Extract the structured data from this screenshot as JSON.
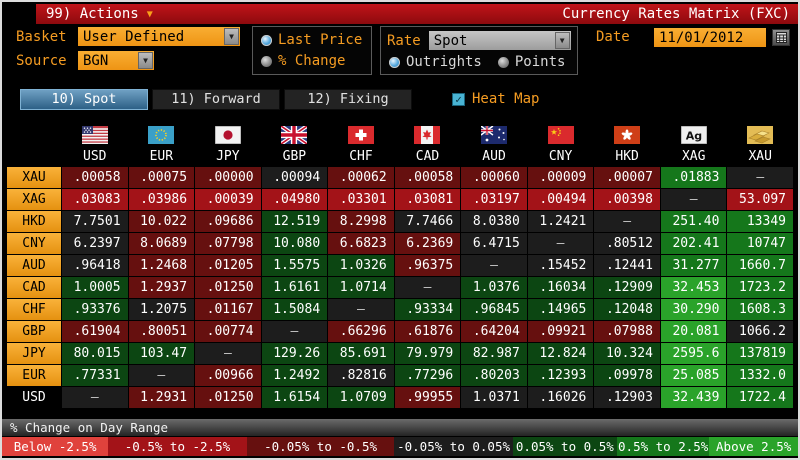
{
  "titlebar": {
    "actions_label": "99) Actions",
    "title": "Currency Rates Matrix (FXC)"
  },
  "toolbar": {
    "basket_label": "Basket",
    "basket_value": "User Defined",
    "source_label": "Source",
    "source_value": "BGN",
    "price_mode": {
      "options": [
        "Last Price",
        "% Change"
      ],
      "selected": "Last Price"
    },
    "rate_label": "Rate",
    "rate_value": "Spot",
    "rate_mode": {
      "options": [
        "Outrights",
        "Points"
      ],
      "selected": "Outrights"
    },
    "date_label": "Date",
    "date_value": "11/01/2012"
  },
  "tabs": [
    {
      "label": "10) Spot",
      "active": true
    },
    {
      "label": "11) Forward",
      "active": false
    },
    {
      "label": "12) Fixing",
      "active": false
    }
  ],
  "heatmap": {
    "label": "Heat Map",
    "checked": true
  },
  "heat_colors": {
    "r3": "#e0423c",
    "r2": "#a31318",
    "r1": "#66100f",
    "flat": "#1d1d1d",
    "g1": "#0c4612",
    "g2": "#15771b",
    "g3": "#2aa32a"
  },
  "matrix": {
    "columns": [
      "USD",
      "EUR",
      "JPY",
      "GBP",
      "CHF",
      "CAD",
      "AUD",
      "CNY",
      "HKD",
      "XAG",
      "XAU"
    ],
    "flag_icons": [
      "us-flag-icon",
      "eu-flag-icon",
      "japan-flag-icon",
      "uk-flag-icon",
      "switzerland-flag-icon",
      "canada-flag-icon",
      "australia-flag-icon",
      "china-flag-icon",
      "hong-kong-flag-icon",
      "silver-icon",
      "gold-icon"
    ],
    "flag_codes": [
      "us",
      "eu",
      "jp",
      "gb",
      "ch",
      "ca",
      "au",
      "cn",
      "hk",
      "ag",
      "xau"
    ],
    "rows": [
      {
        "label": "XAU",
        "amber": true,
        "cells": [
          [
            ".00058",
            "r1"
          ],
          [
            ".00075",
            "r1"
          ],
          [
            ".00000",
            "r1"
          ],
          [
            ".00094",
            "flat"
          ],
          [
            ".00062",
            "r1"
          ],
          [
            ".00058",
            "r1"
          ],
          [
            ".00060",
            "r1"
          ],
          [
            ".00009",
            "r1"
          ],
          [
            ".00007",
            "r1"
          ],
          [
            ".01883",
            "g2"
          ],
          [
            "–",
            "flat"
          ]
        ]
      },
      {
        "label": "XAG",
        "amber": true,
        "cells": [
          [
            ".03083",
            "r2"
          ],
          [
            ".03986",
            "r2"
          ],
          [
            ".00039",
            "r2"
          ],
          [
            ".04980",
            "r2"
          ],
          [
            ".03301",
            "r2"
          ],
          [
            ".03081",
            "r2"
          ],
          [
            ".03197",
            "r2"
          ],
          [
            ".00494",
            "r2"
          ],
          [
            ".00398",
            "r2"
          ],
          [
            "–",
            "flat"
          ],
          [
            "53.097",
            "r2"
          ]
        ]
      },
      {
        "label": "HKD",
        "amber": true,
        "cells": [
          [
            "7.7501",
            "flat"
          ],
          [
            "10.022",
            "r1"
          ],
          [
            ".09686",
            "r1"
          ],
          [
            "12.519",
            "g1"
          ],
          [
            "8.2998",
            "r1"
          ],
          [
            "7.7466",
            "flat"
          ],
          [
            "8.0380",
            "flat"
          ],
          [
            "1.2421",
            "flat"
          ],
          [
            "–",
            "flat"
          ],
          [
            "251.40",
            "g2"
          ],
          [
            "13349",
            "g2"
          ]
        ]
      },
      {
        "label": "CNY",
        "amber": true,
        "cells": [
          [
            "6.2397",
            "flat"
          ],
          [
            "8.0689",
            "r1"
          ],
          [
            ".07798",
            "r1"
          ],
          [
            "10.080",
            "g1"
          ],
          [
            "6.6823",
            "r1"
          ],
          [
            "6.2369",
            "r1"
          ],
          [
            "6.4715",
            "flat"
          ],
          [
            "–",
            "flat"
          ],
          [
            ".80512",
            "flat"
          ],
          [
            "202.41",
            "g2"
          ],
          [
            "10747",
            "g2"
          ]
        ]
      },
      {
        "label": "AUD",
        "amber": true,
        "cells": [
          [
            ".96418",
            "flat"
          ],
          [
            "1.2468",
            "r1"
          ],
          [
            ".01205",
            "r1"
          ],
          [
            "1.5575",
            "g1"
          ],
          [
            "1.0326",
            "g1"
          ],
          [
            ".96375",
            "r1"
          ],
          [
            "–",
            "flat"
          ],
          [
            ".15452",
            "flat"
          ],
          [
            ".12441",
            "flat"
          ],
          [
            "31.277",
            "g2"
          ],
          [
            "1660.7",
            "g2"
          ]
        ]
      },
      {
        "label": "CAD",
        "amber": true,
        "cells": [
          [
            "1.0005",
            "g1"
          ],
          [
            "1.2937",
            "r1"
          ],
          [
            ".01250",
            "r1"
          ],
          [
            "1.6161",
            "g1"
          ],
          [
            "1.0714",
            "g1"
          ],
          [
            "–",
            "flat"
          ],
          [
            "1.0376",
            "g1"
          ],
          [
            ".16034",
            "g1"
          ],
          [
            ".12909",
            "g1"
          ],
          [
            "32.453",
            "g3"
          ],
          [
            "1723.2",
            "g2"
          ]
        ]
      },
      {
        "label": "CHF",
        "amber": true,
        "cells": [
          [
            ".93376",
            "g1"
          ],
          [
            "1.2075",
            "flat"
          ],
          [
            ".01167",
            "r1"
          ],
          [
            "1.5084",
            "g1"
          ],
          [
            "–",
            "flat"
          ],
          [
            ".93334",
            "g1"
          ],
          [
            ".96845",
            "g1"
          ],
          [
            ".14965",
            "g1"
          ],
          [
            ".12048",
            "g1"
          ],
          [
            "30.290",
            "g3"
          ],
          [
            "1608.3",
            "g2"
          ]
        ]
      },
      {
        "label": "GBP",
        "amber": true,
        "cells": [
          [
            ".61904",
            "r1"
          ],
          [
            ".80051",
            "r1"
          ],
          [
            ".00774",
            "r1"
          ],
          [
            "–",
            "flat"
          ],
          [
            ".66296",
            "r1"
          ],
          [
            ".61876",
            "r1"
          ],
          [
            ".64204",
            "r1"
          ],
          [
            ".09921",
            "r1"
          ],
          [
            ".07988",
            "r1"
          ],
          [
            "20.081",
            "g3"
          ],
          [
            "1066.2",
            "flat"
          ]
        ]
      },
      {
        "label": "JPY",
        "amber": true,
        "cells": [
          [
            "80.015",
            "g1"
          ],
          [
            "103.47",
            "g1"
          ],
          [
            "–",
            "flat"
          ],
          [
            "129.26",
            "g1"
          ],
          [
            "85.691",
            "g1"
          ],
          [
            "79.979",
            "g1"
          ],
          [
            "82.987",
            "g1"
          ],
          [
            "12.824",
            "g1"
          ],
          [
            "10.324",
            "g1"
          ],
          [
            "2595.6",
            "g3"
          ],
          [
            "137819",
            "g2"
          ]
        ]
      },
      {
        "label": "EUR",
        "amber": true,
        "cells": [
          [
            ".77331",
            "g1"
          ],
          [
            "–",
            "flat"
          ],
          [
            ".00966",
            "r1"
          ],
          [
            "1.2492",
            "g1"
          ],
          [
            ".82816",
            "flat"
          ],
          [
            ".77296",
            "g1"
          ],
          [
            ".80203",
            "g1"
          ],
          [
            ".12393",
            "g1"
          ],
          [
            ".09978",
            "g1"
          ],
          [
            "25.085",
            "g3"
          ],
          [
            "1332.0",
            "g2"
          ]
        ]
      },
      {
        "label": "USD",
        "amber": false,
        "cells": [
          [
            "–",
            "flat"
          ],
          [
            "1.2931",
            "r1"
          ],
          [
            ".01250",
            "r1"
          ],
          [
            "1.6154",
            "g1"
          ],
          [
            "1.0709",
            "g1"
          ],
          [
            ".99955",
            "r1"
          ],
          [
            "1.0371",
            "flat"
          ],
          [
            ".16026",
            "flat"
          ],
          [
            ".12903",
            "flat"
          ],
          [
            "32.439",
            "g3"
          ],
          [
            "1722.4",
            "g2"
          ]
        ]
      }
    ]
  },
  "legend": {
    "title": "% Change on Day Range",
    "items": [
      {
        "label": "Below -2.5%",
        "cat": "r3"
      },
      {
        "label": "-0.5% to -2.5%",
        "cat": "r2"
      },
      {
        "label": "-0.05% to -0.5%",
        "cat": "r1"
      },
      {
        "label": "-0.05% to 0.05%",
        "cat": "flat"
      },
      {
        "label": "0.05% to 0.5%",
        "cat": "g1"
      },
      {
        "label": "0.5% to 2.5%",
        "cat": "g2"
      },
      {
        "label": "Above 2.5%",
        "cat": "g3"
      }
    ]
  }
}
